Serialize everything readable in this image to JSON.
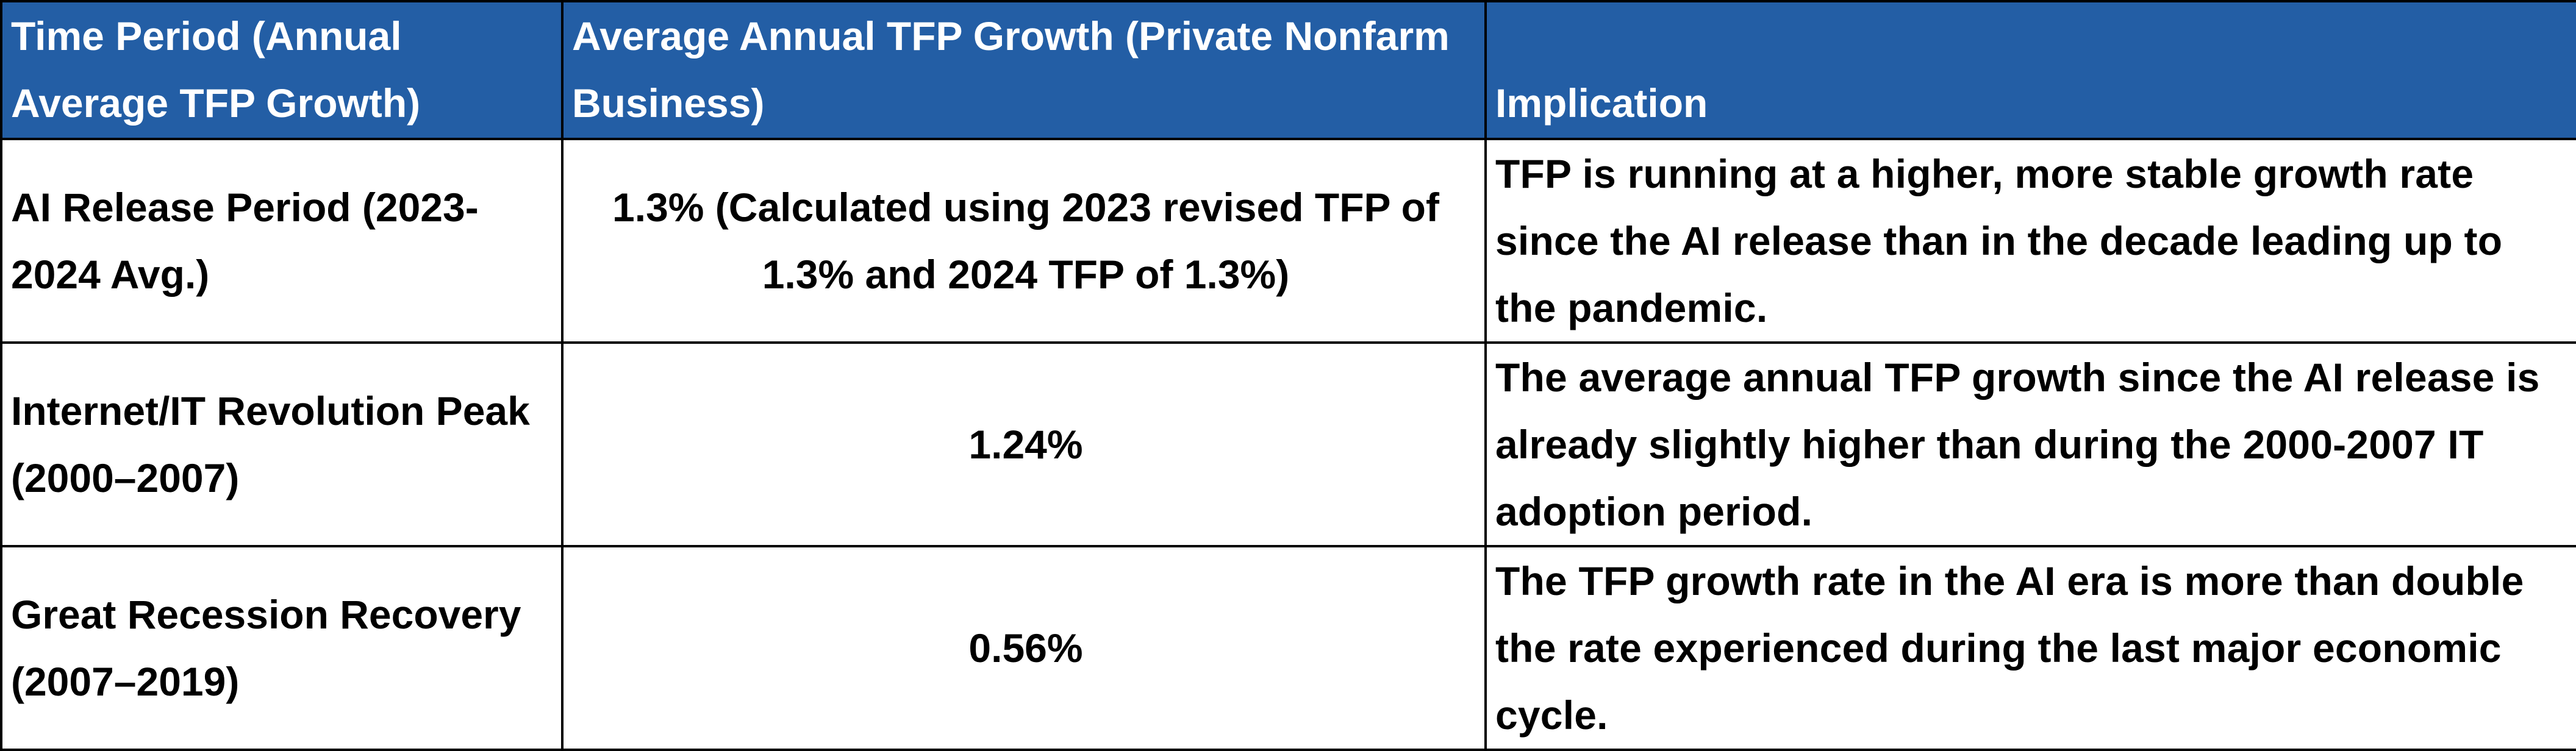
{
  "table": {
    "headers": [
      "Time Period (Annual Average TFP Growth)",
      "Average Annual TFP Growth (Private Nonfarm Business)",
      "Implication"
    ],
    "rows": [
      {
        "period": "AI Release Period (2023-2024 Avg.)",
        "growth": "1.3% (Calculated using 2023 revised TFP of 1.3% and 2024 TFP of 1.3%)",
        "implication": "TFP is running at a higher, more stable growth rate since the AI release than in the decade leading up to the pandemic."
      },
      {
        "period": "Internet/IT Revolution Peak (2000–2007)",
        "growth": "1.24%",
        "implication": "The average annual TFP growth since the AI release is already slightly higher than during the 2000-2007 IT adoption period."
      },
      {
        "period": "Great Recession Recovery (2007–2019)",
        "growth": "0.56%",
        "implication": "The TFP growth rate in the AI era is more than double the rate experienced during the last major economic cycle."
      }
    ]
  },
  "colors": {
    "header_background": "#235ea5",
    "header_text": "#ffffff",
    "border": "#000000",
    "body_text": "#000000"
  }
}
